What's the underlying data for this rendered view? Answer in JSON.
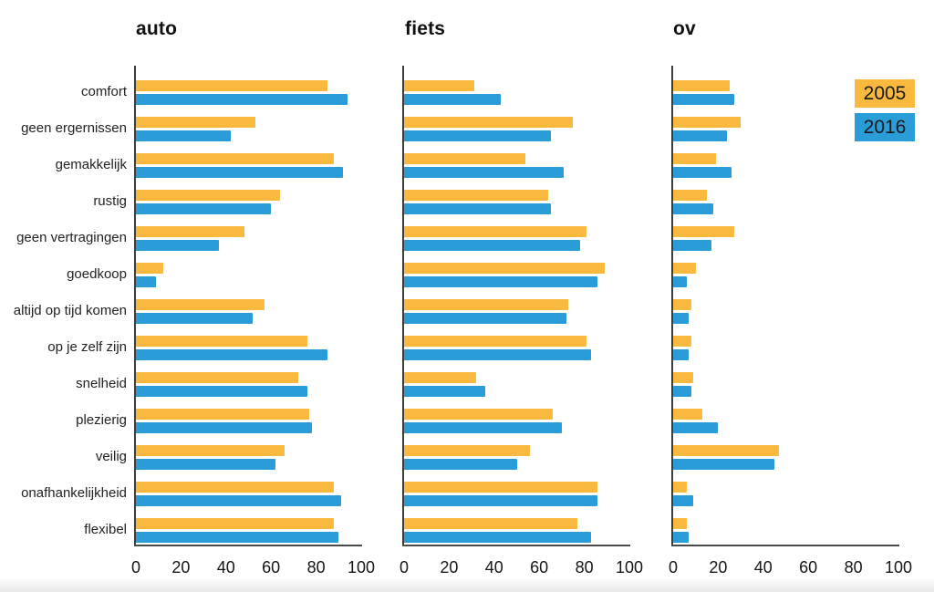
{
  "legend": {
    "items": [
      {
        "label": "2005",
        "color": "#F9B93E"
      },
      {
        "label": "2016",
        "color": "#2A9CD7"
      }
    ]
  },
  "chart_data": {
    "type": "bar",
    "orientation": "horizontal",
    "title": "",
    "xlabel": "",
    "ylabel": "",
    "xlim": [
      0,
      100
    ],
    "xticks": [
      0,
      20,
      40,
      60,
      80,
      100
    ],
    "grid": false,
    "legend_position": "top-right",
    "categories": [
      "comfort",
      "geen ergernissen",
      "gemakkelijk",
      "rustig",
      "geen vertragingen",
      "goedkoop",
      "altijd op tijd komen",
      "op je zelf zijn",
      "snelheid",
      "plezierig",
      "veilig",
      "onafhankelijkheid",
      "flexibel"
    ],
    "panels": [
      {
        "title": "auto",
        "series": [
          {
            "name": "2005",
            "values": [
              85,
              53,
              88,
              64,
              48,
              12,
              57,
              76,
              72,
              77,
              66,
              88,
              88
            ]
          },
          {
            "name": "2016",
            "values": [
              94,
              42,
              92,
              60,
              37,
              9,
              52,
              85,
              76,
              78,
              62,
              91,
              90
            ]
          }
        ]
      },
      {
        "title": "fiets",
        "series": [
          {
            "name": "2005",
            "values": [
              31,
              75,
              54,
              64,
              81,
              89,
              73,
              81,
              32,
              66,
              56,
              86,
              77
            ]
          },
          {
            "name": "2016",
            "values": [
              43,
              65,
              71,
              65,
              78,
              86,
              72,
              83,
              36,
              70,
              50,
              86,
              83
            ]
          }
        ]
      },
      {
        "title": "ov",
        "series": [
          {
            "name": "2005",
            "values": [
              25,
              30,
              19,
              15,
              27,
              10,
              8,
              8,
              9,
              13,
              47,
              6,
              6
            ]
          },
          {
            "name": "2016",
            "values": [
              27,
              24,
              26,
              18,
              17,
              6,
              7,
              7,
              8,
              20,
              45,
              9,
              7
            ]
          }
        ]
      }
    ]
  }
}
